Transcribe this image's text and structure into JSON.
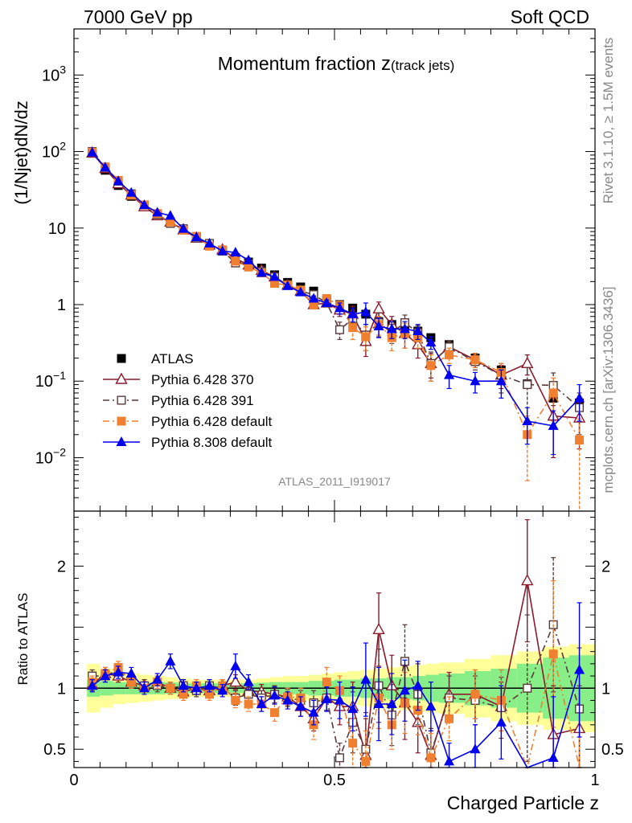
{
  "header": {
    "left": "7000 GeV pp",
    "right": "Soft QCD"
  },
  "side": {
    "upper": "Rivet 3.1.10, ≥ 1.5M events",
    "lower": "mcplots.cern.ch [arXiv:1306.3436]"
  },
  "chart_data": [
    {
      "type": "line",
      "panel": "main",
      "title_main": "Momentum fraction ",
      "title_var": "z",
      "title_sub": "(track jets)",
      "ylabel": "(1/Njet)dN/dz",
      "xlabel": "",
      "watermark": "ATLAS_2011_I919017",
      "yscale": "log",
      "xlim": [
        0,
        1
      ],
      "ylim": [
        0.002,
        4000
      ],
      "y_ticks": [
        {
          "value": 1000,
          "base": "10",
          "exp": "3"
        },
        {
          "value": 100,
          "base": "10",
          "exp": "2"
        },
        {
          "value": 10,
          "base": "10",
          "exp": ""
        },
        {
          "value": 1,
          "base": "1",
          "exp": ""
        },
        {
          "value": 0.1,
          "base": "10",
          "exp": "−1"
        },
        {
          "value": 0.01,
          "base": "10",
          "exp": "−2"
        }
      ],
      "legend_position": "lower-left",
      "x": [
        0.035,
        0.06,
        0.085,
        0.11,
        0.135,
        0.16,
        0.185,
        0.21,
        0.235,
        0.26,
        0.285,
        0.31,
        0.335,
        0.36,
        0.385,
        0.41,
        0.435,
        0.46,
        0.485,
        0.51,
        0.535,
        0.56,
        0.585,
        0.61,
        0.635,
        0.66,
        0.685,
        0.72,
        0.77,
        0.82,
        0.87,
        0.92,
        0.97
      ],
      "series": [
        {
          "name": "ATLAS",
          "color": "#000000",
          "marker": "square-filled",
          "line": "none",
          "values": [
            95,
            57,
            36,
            26,
            20,
            15,
            11.8,
            9.6,
            7.6,
            6.2,
            5.1,
            4.1,
            3.6,
            3.0,
            2.45,
            1.95,
            1.7,
            1.5,
            1.15,
            1.0,
            0.9,
            0.75,
            0.6,
            0.55,
            0.48,
            0.45,
            0.37,
            0.3,
            0.2,
            0.14,
            0.092,
            0.06,
            0.052
          ]
        },
        {
          "name": "Pythia 6.428 370",
          "color": "#8b1a2b",
          "marker": "triangle-open",
          "line": "solid",
          "values": [
            96,
            60,
            38,
            27,
            19,
            14.5,
            12,
            9.5,
            7.4,
            6,
            5.2,
            4,
            3.3,
            2.8,
            2.3,
            1.8,
            1.5,
            1.0,
            1.05,
            0.85,
            0.75,
            0.33,
            0.88,
            0.55,
            0.42,
            0.3,
            0.17,
            0.28,
            0.19,
            0.12,
            0.17,
            0.035,
            0.033
          ],
          "errors": [
            0,
            0,
            0,
            0,
            0,
            0,
            0,
            0,
            0,
            0,
            0,
            0,
            0,
            0,
            0,
            0,
            0,
            0.1,
            0.1,
            0.15,
            0.2,
            0.12,
            0.2,
            0.15,
            0.15,
            0.1,
            0.06,
            0.05,
            0.04,
            0.04,
            0.05,
            0.025,
            0.02
          ]
        },
        {
          "name": "Pythia 6.428 391",
          "color": "#5a3a3a",
          "marker": "square-open",
          "line": "dashdot",
          "values": [
            100,
            62,
            41,
            28,
            20,
            15,
            11.5,
            9.8,
            7.4,
            6.3,
            5,
            3.5,
            3.4,
            2.7,
            2.3,
            1.8,
            1.5,
            1.35,
            1.05,
            0.47,
            0.65,
            0.4,
            0.58,
            0.43,
            0.58,
            0.43,
            0.17,
            0.28,
            0.18,
            0.12,
            0.09,
            0.088,
            0.045
          ],
          "errors": [
            0,
            0,
            0,
            0,
            0,
            0,
            0,
            0,
            0,
            0,
            0,
            0,
            0,
            0,
            0,
            0,
            0,
            0.1,
            0.1,
            0.12,
            0.2,
            0.15,
            0.2,
            0.12,
            0.15,
            0.1,
            0.07,
            0.05,
            0.04,
            0.05,
            0.06,
            0.04,
            0.025
          ]
        },
        {
          "name": "Pythia 6.428 default",
          "color": "#f07f2f",
          "marker": "square-filled",
          "line": "dashdot",
          "values": [
            98,
            63,
            42,
            27,
            20,
            15.5,
            12,
            9.4,
            7.8,
            5.8,
            5.2,
            3.7,
            3.1,
            2.6,
            1.9,
            1.8,
            1.55,
            1.0,
            1.2,
            0.98,
            0.5,
            0.38,
            0.55,
            0.37,
            0.42,
            0.37,
            0.16,
            0.22,
            0.19,
            0.13,
            0.02,
            0.07,
            0.017
          ],
          "errors": [
            0,
            0,
            0,
            0,
            0,
            0,
            0,
            0,
            0,
            0,
            0,
            0,
            0,
            0,
            0,
            0,
            0,
            0.12,
            0.12,
            0.12,
            0.15,
            0.13,
            0.15,
            0.12,
            0.15,
            0.1,
            0.06,
            0.05,
            0.04,
            0.04,
            0.015,
            0.04,
            0.015
          ]
        },
        {
          "name": "Pythia 8.308 default",
          "color": "#0000ee",
          "marker": "triangle-filled",
          "line": "solid",
          "values": [
            97,
            62,
            41,
            29,
            20,
            16,
            14.5,
            9.8,
            7.6,
            6.3,
            5,
            4.8,
            3.8,
            2.6,
            2.3,
            1.75,
            1.45,
            1.2,
            1.05,
            0.9,
            0.75,
            0.8,
            0.52,
            0.48,
            0.48,
            0.45,
            0.32,
            0.12,
            0.1,
            0.1,
            0.03,
            0.026,
            0.06
          ],
          "errors": [
            0,
            0,
            0,
            0,
            0,
            0,
            0,
            0,
            0,
            0,
            0,
            0,
            0,
            0,
            0,
            0,
            0,
            0.1,
            0.1,
            0.15,
            0.15,
            0.25,
            0.15,
            0.12,
            0.12,
            0.1,
            0.06,
            0.04,
            0.03,
            0.04,
            0.015,
            0.015,
            0.03
          ]
        }
      ]
    },
    {
      "type": "line",
      "panel": "ratio",
      "ylabel": "Ratio to ATLAS",
      "xlabel": "Charged Particle z",
      "xlim": [
        0,
        1
      ],
      "ylim": [
        0.35,
        2.45
      ],
      "x_ticks": [
        {
          "value": 0,
          "label": "0"
        },
        {
          "value": 0.5,
          "label": "0.5"
        },
        {
          "value": 1,
          "label": "1"
        }
      ],
      "y_ticks": [
        {
          "value": 0.5,
          "label": "0.5"
        },
        {
          "value": 1,
          "label": "1"
        },
        {
          "value": 2,
          "label": "2"
        }
      ],
      "band_x_edges": [
        0.025,
        0.05,
        0.075,
        0.1,
        0.125,
        0.15,
        0.175,
        0.2,
        0.225,
        0.25,
        0.275,
        0.3,
        0.325,
        0.35,
        0.375,
        0.4,
        0.425,
        0.45,
        0.475,
        0.5,
        0.525,
        0.55,
        0.575,
        0.6,
        0.625,
        0.65,
        0.675,
        0.7,
        0.75,
        0.8,
        0.85,
        0.9,
        0.95,
        1.0
      ],
      "band_stat_halfwidth": [
        0.07,
        0.06,
        0.05,
        0.05,
        0.05,
        0.05,
        0.045,
        0.04,
        0.04,
        0.04,
        0.04,
        0.04,
        0.04,
        0.045,
        0.05,
        0.05,
        0.05,
        0.06,
        0.06,
        0.07,
        0.07,
        0.08,
        0.08,
        0.09,
        0.09,
        0.1,
        0.11,
        0.12,
        0.14,
        0.16,
        0.2,
        0.25,
        0.27
      ],
      "band_total_halfwidth": [
        0.2,
        0.16,
        0.13,
        0.12,
        0.11,
        0.1,
        0.09,
        0.08,
        0.07,
        0.07,
        0.07,
        0.07,
        0.07,
        0.08,
        0.09,
        0.1,
        0.1,
        0.11,
        0.12,
        0.13,
        0.14,
        0.15,
        0.16,
        0.17,
        0.18,
        0.19,
        0.2,
        0.21,
        0.24,
        0.27,
        0.3,
        0.34,
        0.36
      ],
      "x": [
        0.035,
        0.06,
        0.085,
        0.11,
        0.135,
        0.16,
        0.185,
        0.21,
        0.235,
        0.26,
        0.285,
        0.31,
        0.335,
        0.36,
        0.385,
        0.41,
        0.435,
        0.46,
        0.485,
        0.51,
        0.535,
        0.56,
        0.585,
        0.61,
        0.635,
        0.66,
        0.685,
        0.72,
        0.77,
        0.82,
        0.87,
        0.92,
        0.97
      ],
      "series": [
        {
          "name": "Pythia 6.428 370",
          "color": "#8b1a2b",
          "marker": "triangle-open",
          "line": "solid",
          "values": [
            1.03,
            1.12,
            1.1,
            1.05,
            1.02,
            1.05,
            1.0,
            0.97,
            1.0,
            0.98,
            1.02,
            1.05,
            0.98,
            0.97,
            0.95,
            0.93,
            0.85,
            0.75,
            0.92,
            0.85,
            0.85,
            0.45,
            1.48,
            1.02,
            0.88,
            0.72,
            0.45,
            0.95,
            0.95,
            0.85,
            1.88,
            0.62,
            0.67
          ],
          "errors": [
            0.05,
            0.05,
            0.05,
            0.05,
            0.05,
            0.05,
            0.05,
            0.05,
            0.05,
            0.05,
            0.05,
            0.06,
            0.06,
            0.06,
            0.07,
            0.07,
            0.08,
            0.1,
            0.1,
            0.15,
            0.2,
            0.3,
            0.3,
            0.25,
            0.3,
            0.25,
            0.2,
            0.18,
            0.2,
            0.2,
            0.5,
            0.4,
            0.35
          ]
        },
        {
          "name": "Pythia 6.428 391",
          "color": "#5a3a3a",
          "marker": "square-open",
          "line": "dashdot",
          "values": [
            1.1,
            1.1,
            1.15,
            1.05,
            1.02,
            1.02,
            1.0,
            1.02,
            0.98,
            1.02,
            1.0,
            0.92,
            0.95,
            0.92,
            0.95,
            0.92,
            0.9,
            0.88,
            0.92,
            0.43,
            0.72,
            0.5,
            1.02,
            0.78,
            1.22,
            0.95,
            0.47,
            0.92,
            0.9,
            0.84,
            1.0,
            1.52,
            0.83
          ],
          "errors": [
            0.05,
            0.05,
            0.05,
            0.05,
            0.05,
            0.05,
            0.05,
            0.05,
            0.05,
            0.05,
            0.05,
            0.06,
            0.06,
            0.06,
            0.07,
            0.07,
            0.08,
            0.1,
            0.1,
            0.12,
            0.25,
            0.3,
            0.3,
            0.25,
            0.3,
            0.25,
            0.2,
            0.18,
            0.2,
            0.25,
            0.6,
            0.55,
            0.5
          ]
        },
        {
          "name": "Pythia 6.428 default",
          "color": "#f07f2f",
          "marker": "square-filled",
          "line": "dashdot",
          "values": [
            1.05,
            1.12,
            1.17,
            1.05,
            1.0,
            1.05,
            1.0,
            0.95,
            1.02,
            0.95,
            1.02,
            0.9,
            0.87,
            0.87,
            0.8,
            0.93,
            0.92,
            0.7,
            1.05,
            0.98,
            0.55,
            0.4,
            0.92,
            0.7,
            0.88,
            0.82,
            0.43,
            0.75,
            0.95,
            0.9,
            0.2,
            1.28,
            0.3
          ],
          "errors": [
            0.05,
            0.05,
            0.05,
            0.05,
            0.05,
            0.05,
            0.05,
            0.05,
            0.05,
            0.05,
            0.05,
            0.06,
            0.06,
            0.06,
            0.07,
            0.07,
            0.08,
            0.12,
            0.12,
            0.12,
            0.2,
            0.25,
            0.25,
            0.2,
            0.25,
            0.2,
            0.2,
            0.18,
            0.2,
            0.25,
            0.15,
            0.6,
            0.3
          ]
        },
        {
          "name": "Pythia 8.308 default",
          "color": "#0000ee",
          "marker": "triangle-filled",
          "line": "solid",
          "values": [
            1.02,
            1.1,
            1.13,
            1.12,
            1.0,
            1.07,
            1.22,
            1.02,
            1.0,
            1.02,
            0.98,
            1.18,
            1.05,
            0.87,
            0.94,
            0.9,
            0.85,
            0.8,
            0.91,
            0.9,
            0.83,
            1.07,
            0.87,
            0.87,
            0.98,
            1.02,
            0.85,
            0.4,
            0.5,
            0.72,
            0.1,
            0.43,
            1.15
          ],
          "errors": [
            0.05,
            0.05,
            0.05,
            0.05,
            0.05,
            0.05,
            0.06,
            0.05,
            0.05,
            0.05,
            0.05,
            0.1,
            0.06,
            0.06,
            0.07,
            0.07,
            0.08,
            0.1,
            0.1,
            0.15,
            0.18,
            0.3,
            0.3,
            0.25,
            0.25,
            0.2,
            0.2,
            0.15,
            0.2,
            0.3,
            0.2,
            0.5,
            0.55
          ]
        }
      ]
    }
  ]
}
